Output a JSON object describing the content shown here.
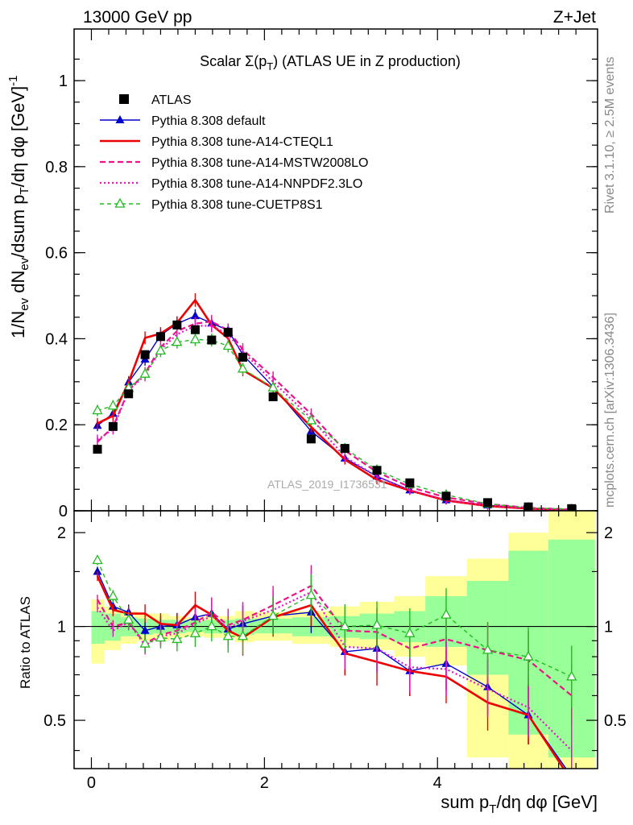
{
  "header": {
    "left": "13000 GeV pp",
    "right": "Z+Jet"
  },
  "side_labels": {
    "rivet": "Rivet 3.1.10, ≥ 2.5M events",
    "mcplots": "mcplots.cern.ch [arXiv:1306.3436]"
  },
  "watermark": "ATLAS_2019_I1736531",
  "colors": {
    "atlas": "#000000",
    "default": "#0000cc",
    "cteql1": "#ee0000",
    "mstw": "#ee1188",
    "nnpdf": "#ee11cc",
    "cuetp8s1": "#22bb22",
    "band_inner": "#99ff99",
    "band_outer": "#ffff99"
  },
  "chart_data": [
    {
      "type": "line",
      "title": "Scalar Σ(pT) (ATLAS UE in Z production)",
      "title_parts": {
        "pre": "Scalar Σ(p",
        "sub": "T",
        "post": ") (ATLAS UE in Z production)"
      },
      "ylabel": "1/N_ev dN_ev/dsum p_T/dη dφ [GeV]^-1",
      "xlim": [
        -0.2,
        5.85
      ],
      "ylim": [
        0,
        1.12
      ],
      "yticks": [
        "0",
        "0.2",
        "0.4",
        "0.6",
        "0.8",
        "1"
      ],
      "ytick_values": [
        0,
        0.2,
        0.4,
        0.6,
        0.8,
        1.0
      ],
      "legend_position": "top-left",
      "x": [
        0.07,
        0.25,
        0.43,
        0.62,
        0.8,
        0.99,
        1.2,
        1.39,
        1.58,
        1.75,
        2.1,
        2.54,
        2.93,
        3.3,
        3.68,
        4.1,
        4.58,
        5.05,
        5.55
      ],
      "series": [
        {
          "name": "ATLAS",
          "key": "atlas",
          "marker": "square",
          "style": "none",
          "values": [
            0.143,
            0.196,
            0.272,
            0.363,
            0.405,
            0.432,
            0.421,
            0.397,
            0.415,
            0.357,
            0.265,
            0.167,
            0.145,
            0.094,
            0.065,
            0.034,
            0.019,
            0.009,
            0.005
          ]
        },
        {
          "name": "Pythia 8.308 default",
          "key": "default",
          "marker": "triangle",
          "style": "solid-thin",
          "values": [
            0.198,
            0.226,
            0.299,
            0.352,
            0.408,
            0.435,
            0.453,
            0.436,
            0.42,
            0.363,
            0.288,
            0.185,
            0.122,
            0.08,
            0.048,
            0.025,
            0.013,
            0.006,
            0.003
          ]
        },
        {
          "name": "Pythia 8.308 tune-A14-CTEQL1",
          "key": "cteql1",
          "marker": "none",
          "style": "solid-thick",
          "values": [
            0.203,
            0.221,
            0.299,
            0.402,
            0.412,
            0.437,
            0.49,
            0.432,
            0.401,
            0.327,
            0.285,
            0.195,
            0.119,
            0.072,
            0.047,
            0.024,
            0.011,
            0.005,
            0.002
          ]
        },
        {
          "name": "Pythia 8.308 tune-A14-MSTW2008LO",
          "key": "mstw",
          "marker": "none",
          "style": "dashed",
          "values": [
            0.16,
            0.195,
            0.28,
            0.32,
            0.38,
            0.418,
            0.435,
            0.44,
            0.42,
            0.375,
            0.31,
            0.225,
            0.14,
            0.09,
            0.055,
            0.031,
            0.016,
            0.007,
            0.003
          ]
        },
        {
          "name": "Pythia 8.308 tune-A14-NNPDF2.3LO",
          "key": "nnpdf",
          "marker": "none",
          "style": "dotted",
          "values": [
            0.165,
            0.19,
            0.28,
            0.315,
            0.375,
            0.41,
            0.43,
            0.43,
            0.41,
            0.37,
            0.3,
            0.215,
            0.125,
            0.08,
            0.048,
            0.025,
            0.012,
            0.005,
            0.002
          ]
        },
        {
          "name": "Pythia 8.308 tune-CUETP8S1",
          "key": "cuetp8s1",
          "marker": "open-triangle",
          "style": "dashed-thin",
          "values": [
            0.233,
            0.244,
            0.285,
            0.318,
            0.372,
            0.392,
            0.398,
            0.397,
            0.383,
            0.33,
            0.286,
            0.21,
            0.145,
            0.095,
            0.062,
            0.037,
            0.016,
            0.007,
            0.0035
          ]
        }
      ]
    },
    {
      "type": "line",
      "ylabel": "Ratio to ATLAS",
      "xlabel": "sum p_T/dη dφ [GeV]",
      "xlabel_parts": {
        "pre": "sum p",
        "sub": "T",
        "post": "/dη dφ [GeV]"
      },
      "xlim": [
        -0.2,
        5.85
      ],
      "ylim": [
        0.35,
        2.35
      ],
      "log_y": true,
      "yticks": [
        "0.5",
        "1",
        "2"
      ],
      "ytick_values": [
        0.5,
        1.0,
        2.0
      ],
      "xticks": [
        "0",
        "2",
        "4"
      ],
      "xtick_values": [
        0,
        2,
        4
      ],
      "reference_line": 1,
      "bands": {
        "edges": [
          0.0,
          0.15,
          0.34,
          0.53,
          0.71,
          0.9,
          1.09,
          1.3,
          1.48,
          1.66,
          1.88,
          2.32,
          2.76,
          3.1,
          3.5,
          3.86,
          4.34,
          4.82,
          5.28,
          5.82
        ],
        "inner": [
          [
            0.88,
            1.12
          ],
          [
            0.9,
            1.1
          ],
          [
            0.93,
            1.07
          ],
          [
            0.94,
            1.06
          ],
          [
            0.95,
            1.05
          ],
          [
            0.95,
            1.05
          ],
          [
            0.96,
            1.04
          ],
          [
            0.95,
            1.05
          ],
          [
            0.95,
            1.05
          ],
          [
            0.94,
            1.06
          ],
          [
            0.95,
            1.06
          ],
          [
            0.93,
            1.07
          ],
          [
            0.92,
            1.08
          ],
          [
            0.91,
            1.1
          ],
          [
            0.89,
            1.12
          ],
          [
            0.86,
            1.25
          ],
          [
            0.7,
            1.4
          ],
          [
            0.45,
            1.75
          ],
          [
            0.38,
            1.9
          ]
        ],
        "outer": [
          [
            0.76,
            1.22
          ],
          [
            0.84,
            1.16
          ],
          [
            0.88,
            1.12
          ],
          [
            0.9,
            1.1
          ],
          [
            0.9,
            1.1
          ],
          [
            0.92,
            1.08
          ],
          [
            0.93,
            1.07
          ],
          [
            0.92,
            1.08
          ],
          [
            0.92,
            1.08
          ],
          [
            0.89,
            1.12
          ],
          [
            0.9,
            1.11
          ],
          [
            0.88,
            1.12
          ],
          [
            0.86,
            1.16
          ],
          [
            0.84,
            1.2
          ],
          [
            0.8,
            1.25
          ],
          [
            0.75,
            1.45
          ],
          [
            0.38,
            1.65
          ],
          [
            0.35,
            2.0
          ],
          [
            0.35,
            2.35
          ]
        ]
      },
      "series": [
        {
          "name": "Pythia 8.308 default",
          "key": "default",
          "values": [
            1.5,
            1.16,
            1.11,
            0.97,
            1.0,
            1.01,
            1.07,
            1.1,
            0.98,
            1.02,
            1.08,
            1.11,
            0.83,
            0.85,
            0.72,
            0.76,
            0.64,
            0.52,
            0.33
          ]
        },
        {
          "name": "Pythia 8.308 tune-A14-CTEQL1",
          "key": "cteql1",
          "values": [
            1.45,
            1.13,
            1.1,
            1.1,
            1.02,
            1.01,
            1.17,
            1.09,
            0.97,
            0.92,
            1.07,
            1.17,
            0.82,
            0.77,
            0.72,
            0.69,
            0.57,
            0.52,
            0.32
          ]
        },
        {
          "name": "Pythia 8.308 tune-A14-MSTW2008LO",
          "key": "mstw",
          "values": [
            1.22,
            1.0,
            1.03,
            0.88,
            0.94,
            0.97,
            1.03,
            1.11,
            1.01,
            1.05,
            1.17,
            1.35,
            0.97,
            0.96,
            0.85,
            0.91,
            0.84,
            0.78,
            0.6
          ]
        },
        {
          "name": "Pythia 8.308 tune-A14-NNPDF2.3LO",
          "key": "nnpdf",
          "values": [
            1.15,
            0.97,
            1.03,
            0.87,
            0.93,
            0.95,
            1.02,
            1.08,
            0.99,
            1.04,
            1.13,
            1.29,
            0.86,
            0.85,
            0.74,
            0.73,
            0.63,
            0.55,
            0.4
          ]
        },
        {
          "name": "Pythia 8.308 tune-CUETP8S1",
          "key": "cuetp8s1",
          "values": [
            1.63,
            1.25,
            1.05,
            0.88,
            0.92,
            0.91,
            0.95,
            1.0,
            0.93,
            0.93,
            1.08,
            1.26,
            1.0,
            1.01,
            0.95,
            1.09,
            0.84,
            0.8,
            0.69
          ]
        }
      ]
    }
  ]
}
